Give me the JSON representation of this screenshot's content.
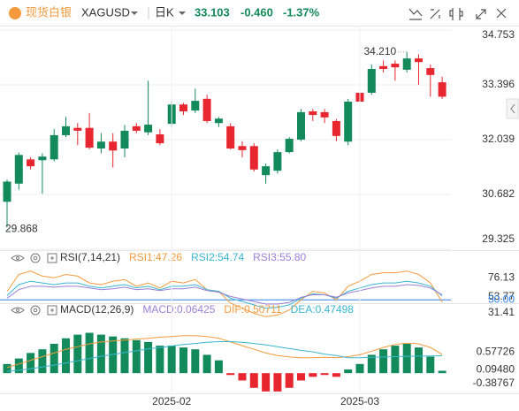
{
  "header": {
    "brand": "现货白银",
    "symbol": "XAGUSD",
    "period": "日K",
    "price": "33.103",
    "change": "-0.460",
    "change_pct": "-1.37%"
  },
  "chart_data": [
    {
      "type": "candlestick",
      "open": [
        30.5,
        30.95,
        31.55,
        31.53,
        31.55,
        32.15,
        32.33,
        32.33,
        31.82,
        31.99,
        31.82,
        32.37,
        32.22,
        32.17,
        32.43,
        32.91,
        32.76,
        33.05,
        32.45,
        32.37,
        31.88,
        31.88,
        31.16,
        31.27,
        31.73,
        32.04,
        32.74,
        32.72,
        32.5,
        31.99,
        33.2,
        33.2,
        33.86,
        33.92,
        33.77,
        34.05,
        33.81,
        33.46
      ],
      "high": [
        31.05,
        31.72,
        31.6,
        31.7,
        32.3,
        32.6,
        32.45,
        32.7,
        32.2,
        32.2,
        32.4,
        32.45,
        33.5,
        32.3,
        33.0,
        32.95,
        33.3,
        33.15,
        32.6,
        32.45,
        32.0,
        31.95,
        31.45,
        31.8,
        32.1,
        32.8,
        32.8,
        32.8,
        32.55,
        33.05,
        33.35,
        33.9,
        34.0,
        34.0,
        34.21,
        34.15,
        33.9,
        33.6
      ],
      "low": [
        29.868,
        30.8,
        31.3,
        30.7,
        31.5,
        32.1,
        31.9,
        31.8,
        31.7,
        31.35,
        31.6,
        32.2,
        32.15,
        31.9,
        32.35,
        32.65,
        32.7,
        32.45,
        32.35,
        31.8,
        31.6,
        31.25,
        30.95,
        31.2,
        31.7,
        32.0,
        32.5,
        32.45,
        32.0,
        31.9,
        32.95,
        33.15,
        33.7,
        33.5,
        33.7,
        33.4,
        33.1,
        33.05
      ],
      "close": [
        31.0,
        31.66,
        31.38,
        31.62,
        32.15,
        32.37,
        32.26,
        31.84,
        31.99,
        31.77,
        32.26,
        32.26,
        32.41,
        31.95,
        32.91,
        32.74,
        33.0,
        32.5,
        32.56,
        31.82,
        31.78,
        31.3,
        31.38,
        31.73,
        32.06,
        32.72,
        32.65,
        32.59,
        32.13,
        32.98,
        32.98,
        33.79,
        33.79,
        33.83,
        34.05,
        33.96,
        33.64,
        33.103
      ],
      "up_color": "#138a5c",
      "down_color": "#e8262f",
      "ylim": [
        29.325,
        34.753
      ],
      "yticks": [
        34.753,
        33.396,
        32.039,
        30.682,
        29.325
      ],
      "grid": true,
      "annotations": [
        {
          "value": 34.21,
          "label": "34.210"
        },
        {
          "value": 29.868,
          "label": "29.868"
        }
      ]
    },
    {
      "type": "line",
      "title": "RSI(7,14,21)",
      "series": [
        {
          "name": "RSI1:47.26",
          "color": "#f39a3c",
          "values": [
            60,
            80,
            84,
            78,
            76,
            80,
            78,
            70,
            68,
            72,
            74,
            66,
            70,
            64,
            72,
            70,
            74,
            62,
            60,
            46,
            40,
            34,
            30,
            32,
            38,
            50,
            60,
            58,
            50,
            66,
            72,
            80,
            82,
            82,
            84,
            80,
            70,
            47.26
          ]
        },
        {
          "name": "RSI2:54.74",
          "color": "#39b7cf",
          "values": [
            55,
            68,
            72,
            70,
            68,
            70,
            70,
            66,
            64,
            66,
            68,
            64,
            66,
            62,
            66,
            66,
            68,
            62,
            60,
            52,
            48,
            44,
            40,
            41,
            44,
            52,
            57,
            56,
            52,
            60,
            64,
            68,
            70,
            70,
            72,
            70,
            66,
            54.74
          ]
        },
        {
          "name": "RSI3:55.80",
          "color": "#9b7fd6",
          "values": [
            52,
            62,
            66,
            66,
            65,
            66,
            66,
            64,
            62,
            63,
            65,
            62,
            63,
            61,
            63,
            63,
            65,
            61,
            59,
            54,
            51,
            48,
            45,
            45,
            47,
            53,
            56,
            56,
            53,
            58,
            61,
            64,
            66,
            66,
            68,
            67,
            64,
            55.8
          ]
        }
      ],
      "ylim": [
        23,
        91
      ],
      "yticks": [
        76.13,
        53.77,
        {
          "value": 50,
          "label": "50.00",
          "color": "#2f80ed"
        },
        31.41
      ],
      "grid": false
    },
    {
      "type": "macd",
      "title": "MACD(12,26,9)",
      "categories": [
        null,
        null,
        null,
        null,
        null,
        null,
        null,
        null,
        null,
        null,
        null,
        null,
        null,
        null,
        "2025-02",
        null,
        null,
        null,
        null,
        null,
        null,
        null,
        null,
        null,
        null,
        null,
        null,
        null,
        null,
        null,
        "2025-03",
        null,
        null,
        null,
        null,
        null,
        null,
        null
      ],
      "series": [
        {
          "name": "MACD:0.06425",
          "type": "bar",
          "color": "#9b7fd6",
          "up_color": "#138a5c",
          "down_color": "#e8262f",
          "values": [
            0.25,
            0.4,
            0.55,
            0.65,
            0.8,
            0.95,
            1.05,
            1.1,
            1.05,
            1.0,
            0.95,
            0.9,
            0.85,
            0.75,
            0.75,
            0.7,
            0.65,
            0.5,
            0.35,
            -0.05,
            -0.2,
            -0.4,
            -0.5,
            -0.5,
            -0.4,
            -0.2,
            -0.1,
            -0.05,
            -0.1,
            0.1,
            0.25,
            0.5,
            0.65,
            0.75,
            0.8,
            0.7,
            0.45,
            0.06425
          ]
        },
        {
          "name": "DIF:0.50711",
          "color": "#f39a3c",
          "values": [
            0.15,
            0.25,
            0.35,
            0.45,
            0.55,
            0.65,
            0.72,
            0.8,
            0.85,
            0.88,
            0.9,
            0.93,
            0.95,
            0.98,
            1.0,
            1.02,
            1.02,
            1.0,
            0.95,
            0.85,
            0.75,
            0.65,
            0.55,
            0.48,
            0.44,
            0.42,
            0.42,
            0.43,
            0.42,
            0.45,
            0.5,
            0.6,
            0.7,
            0.78,
            0.82,
            0.8,
            0.7,
            0.50711
          ]
        },
        {
          "name": "DEA:0.47498",
          "color": "#39b7cf",
          "values": [
            0.05,
            0.08,
            0.12,
            0.17,
            0.22,
            0.28,
            0.34,
            0.4,
            0.46,
            0.51,
            0.56,
            0.61,
            0.66,
            0.7,
            0.74,
            0.78,
            0.81,
            0.84,
            0.86,
            0.86,
            0.84,
            0.81,
            0.77,
            0.72,
            0.67,
            0.62,
            0.58,
            0.52,
            0.48,
            0.42,
            0.42,
            0.43,
            0.44,
            0.45,
            0.46,
            0.465,
            0.468,
            0.47498
          ]
        }
      ],
      "ylim": [
        -0.55,
        1.45
      ],
      "yticks": [
        0.57726,
        {
          "value": 0.0948,
          "label": "0.09480"
        },
        -0.38767
      ],
      "grid": false
    }
  ]
}
